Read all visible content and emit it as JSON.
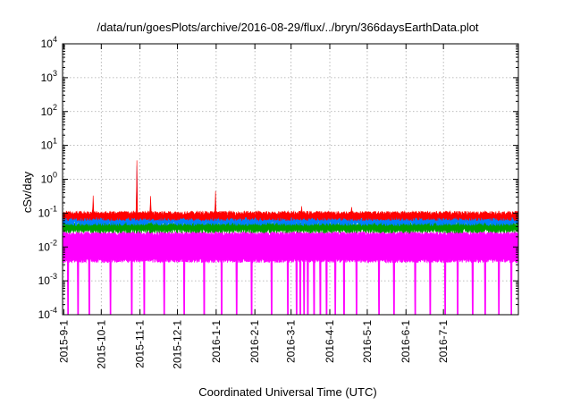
{
  "chart_data": {
    "type": "line",
    "title": "/data/run/goesPlots/archive/2016-08-29/flux/../bryn/366daysEarthData.plot",
    "xlabel": "Coordinated Universal Time (UTC)",
    "ylabel": "cSv/day",
    "x_range": [
      "2015-08-31",
      "2016-08-30"
    ],
    "y_range": [
      0.0001,
      10000
    ],
    "y_scale": "log",
    "grid": true,
    "legend": "none",
    "x_tick_labels": [
      "2015-9-1",
      "2015-10-1",
      "2015-11-1",
      "2015-12-1",
      "2016-1-1",
      "2016-2-1",
      "2016-3-1",
      "2016-4-1",
      "2016-5-1",
      "2016-6-1",
      "2016-7-1"
    ],
    "x_ticks": [
      "2015-09-01",
      "2015-10-01",
      "2015-11-01",
      "2015-12-01",
      "2016-01-01",
      "2016-02-01",
      "2016-03-01",
      "2016-04-01",
      "2016-05-01",
      "2016-06-01",
      "2016-07-01"
    ],
    "y_ticks": [
      0.0001,
      0.001,
      0.01,
      0.1,
      1,
      10,
      100,
      1000,
      10000
    ],
    "y_tick_labels": [
      {
        "base": "10",
        "exp": "-4"
      },
      {
        "base": "10",
        "exp": "-3"
      },
      {
        "base": "10",
        "exp": "-2"
      },
      {
        "base": "10",
        "exp": "-1"
      },
      {
        "base": "10",
        "exp": "0"
      },
      {
        "base": "10",
        "exp": "1"
      },
      {
        "base": "10",
        "exp": "2"
      },
      {
        "base": "10",
        "exp": "3"
      },
      {
        "base": "10",
        "exp": "4"
      }
    ],
    "series_colors": [
      "#ff00ff",
      "#00a000",
      "#0080ff",
      "#ff0000"
    ],
    "series": [
      {
        "color": "#ff00ff",
        "baseline_range": [
          0.004,
          0.025
        ],
        "dropout_dates": [
          "2015-09-04",
          "2015-09-12",
          "2015-09-21",
          "2015-10-08",
          "2015-10-25",
          "2015-11-04",
          "2015-11-20",
          "2015-12-06",
          "2015-12-22",
          "2016-01-05",
          "2016-01-17",
          "2016-01-29",
          "2016-02-14",
          "2016-02-27",
          "2016-03-05",
          "2016-03-08",
          "2016-03-11",
          "2016-03-14",
          "2016-03-19",
          "2016-03-24",
          "2016-03-29",
          "2016-04-05",
          "2016-04-12",
          "2016-04-22",
          "2016-05-10",
          "2016-05-22",
          "2016-06-08",
          "2016-06-20",
          "2016-07-02",
          "2016-07-12",
          "2016-07-24",
          "2016-08-03",
          "2016-08-14",
          "2016-08-24"
        ],
        "spikes": [
          {
            "x": "2015-09-24",
            "y": 0.12
          },
          {
            "x": "2015-10-29",
            "y": 1.8
          },
          {
            "x": "2015-11-09",
            "y": 0.1
          },
          {
            "x": "2015-12-31",
            "y": 0.18
          }
        ]
      },
      {
        "color": "#00a000",
        "baseline_range": [
          0.03,
          0.05
        ],
        "spikes": [
          {
            "x": "2015-10-29",
            "y": 0.5
          },
          {
            "x": "2015-12-31",
            "y": 0.08
          }
        ]
      },
      {
        "color": "#0080ff",
        "baseline_range": [
          0.05,
          0.075
        ],
        "spikes": [
          {
            "x": "2015-09-24",
            "y": 0.18
          },
          {
            "x": "2015-10-29",
            "y": 2.5
          },
          {
            "x": "2015-11-09",
            "y": 0.18
          },
          {
            "x": "2015-12-31",
            "y": 0.25
          }
        ]
      },
      {
        "color": "#ff0000",
        "baseline_range": [
          0.07,
          0.1
        ],
        "spikes": [
          {
            "x": "2015-09-24",
            "y": 0.33
          },
          {
            "x": "2015-10-29",
            "y": 3.6
          },
          {
            "x": "2015-11-09",
            "y": 0.32
          },
          {
            "x": "2015-12-31",
            "y": 0.45
          },
          {
            "x": "2016-03-09",
            "y": 0.16
          },
          {
            "x": "2016-04-18",
            "y": 0.15
          }
        ]
      }
    ]
  }
}
